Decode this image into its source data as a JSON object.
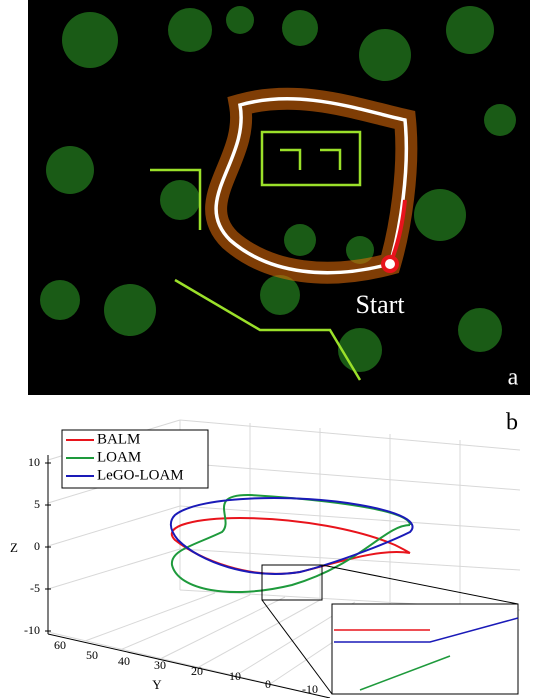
{
  "panel_a": {
    "start_label": "Start",
    "panel_label": "a"
  },
  "panel_b": {
    "panel_label": "b",
    "legend": [
      {
        "name": "BALM",
        "color": "#e8141c"
      },
      {
        "name": "LOAM",
        "color": "#1e9a3c"
      },
      {
        "name": "LeGO-LOAM",
        "color": "#1a1ab8"
      }
    ],
    "z_axis": {
      "label": "Z",
      "ticks": [
        10,
        5,
        0,
        -5,
        -10
      ]
    },
    "y_axis": {
      "label": "Y",
      "ticks": [
        60,
        50,
        40,
        30,
        20,
        10,
        0,
        -10
      ]
    }
  }
}
